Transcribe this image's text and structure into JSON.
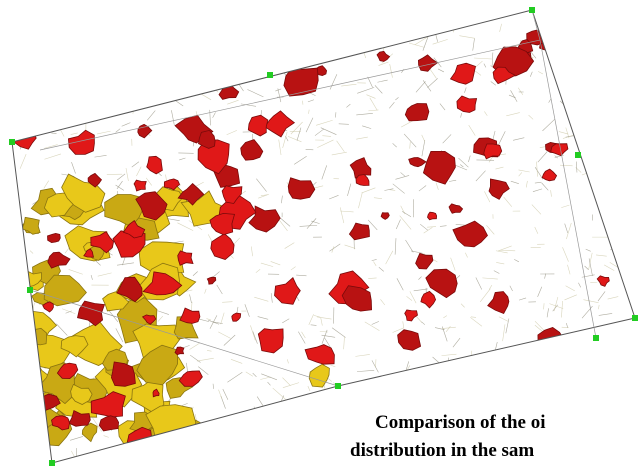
{
  "caption": {
    "lines": [
      "Comparison of the oi",
      "distribution in the sam"
    ]
  }
}
